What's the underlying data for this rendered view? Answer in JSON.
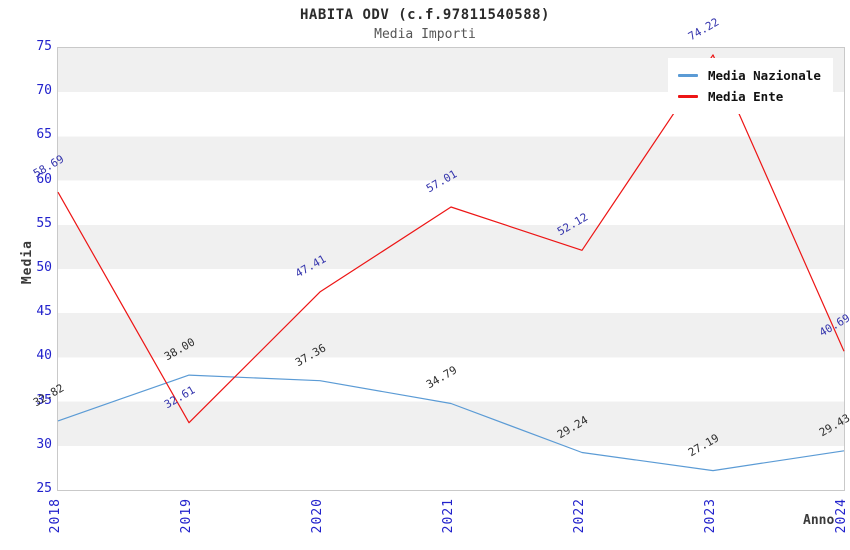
{
  "header": {
    "title": "HABITA ODV (c.f.97811540588)",
    "subtitle": "Media Importi"
  },
  "chart_data": {
    "type": "line",
    "x": [
      2018,
      2019,
      2020,
      2021,
      2022,
      2023,
      2024
    ],
    "xlabel": "Anno",
    "ylabel": "Media",
    "ylim": [
      25,
      75
    ],
    "yticks": [
      25,
      30,
      35,
      40,
      45,
      50,
      55,
      60,
      65,
      70,
      75
    ],
    "grid": "alternating-horizontal-bands",
    "legend_position": "top-right",
    "series": [
      {
        "id": "nazionale",
        "name": "Media Nazionale",
        "color": "#5b9bd5",
        "label_color": "#2e2e2e",
        "values": [
          32.82,
          38.0,
          37.36,
          34.79,
          29.24,
          27.19,
          29.43
        ],
        "labels": [
          "32.82",
          "38.00",
          "37.36",
          "34.79",
          "29.24",
          "27.19",
          "29.43"
        ]
      },
      {
        "id": "ente",
        "name": "Media Ente",
        "color": "#ed1515",
        "label_color": "#3535ad",
        "values": [
          58.69,
          32.61,
          47.41,
          57.01,
          52.12,
          74.22,
          40.69
        ],
        "labels": [
          "58.69",
          "32.61",
          "47.41",
          "57.01",
          "52.12",
          "74.22",
          "40.69"
        ]
      }
    ]
  },
  "colors": {
    "tick_label": "#2222cc",
    "band_gray": "#f0f0f0",
    "plot_border": "#c9c9c9",
    "title_text": "#2b2b2b",
    "subtitle_text": "#555555"
  }
}
